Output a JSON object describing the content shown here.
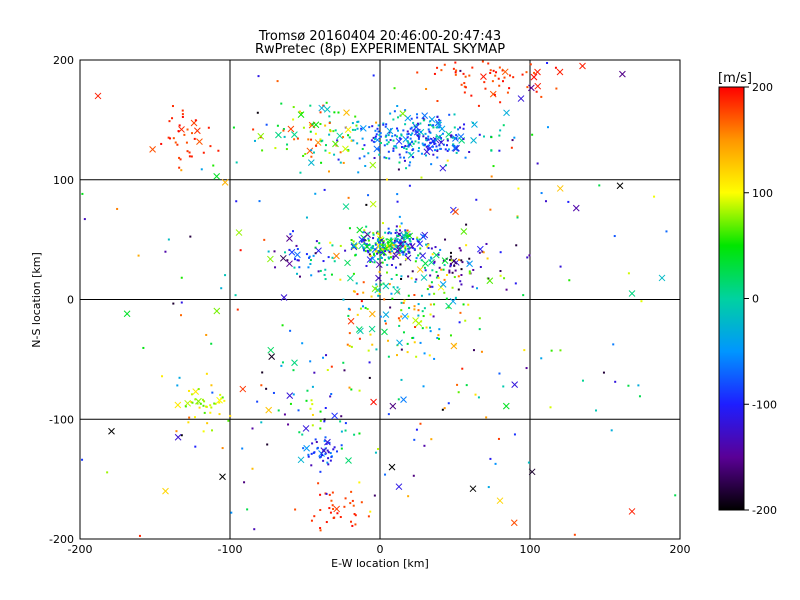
{
  "chart_data": {
    "type": "scatter",
    "title": "Tromsø 20160404 20:46:00-20:47:43",
    "subtitle": "RwPretec (8p) EXPERIMENTAL SKYMAP",
    "xlabel": "E-W location [km]",
    "ylabel": "N-S location [km]",
    "xlim": [
      -200,
      200
    ],
    "ylim": [
      -200,
      200
    ],
    "xticks": [
      "-200",
      "-100",
      "0",
      "100",
      "200"
    ],
    "yticks": [
      "-200",
      "-100",
      "0",
      "100",
      "200"
    ],
    "grid": true,
    "markers": {
      "dot": "small point",
      "cross": "x"
    },
    "colorbar": {
      "label": "[m/s]",
      "range": [
        -200,
        200
      ],
      "ticks": [
        "200",
        "100",
        "0",
        "-100",
        "-200"
      ],
      "colormap": "black-purple-blue-cyan-green-yellow-orange-red"
    },
    "clusters": [
      {
        "center": [
          25,
          135
        ],
        "spread": [
          22,
          10
        ],
        "count": 260,
        "velocity_range": [
          -130,
          20
        ]
      },
      {
        "center": [
          -40,
          135
        ],
        "spread": [
          18,
          12
        ],
        "count": 80,
        "velocity_range": [
          -50,
          190
        ]
      },
      {
        "center": [
          -130,
          135
        ],
        "spread": [
          10,
          12
        ],
        "count": 35,
        "velocity_range": [
          170,
          200
        ]
      },
      {
        "center": [
          75,
          185
        ],
        "spread": [
          20,
          10
        ],
        "count": 60,
        "velocity_range": [
          170,
          200
        ]
      },
      {
        "center": [
          8,
          45
        ],
        "spread": [
          14,
          8
        ],
        "count": 260,
        "velocity_range": [
          -150,
          120
        ]
      },
      {
        "center": [
          45,
          30
        ],
        "spread": [
          20,
          12
        ],
        "count": 60,
        "velocity_range": [
          -200,
          -100
        ]
      },
      {
        "center": [
          -50,
          35
        ],
        "spread": [
          12,
          10
        ],
        "count": 40,
        "velocity_range": [
          -180,
          40
        ]
      },
      {
        "center": [
          20,
          0
        ],
        "spread": [
          28,
          25
        ],
        "count": 170,
        "velocity_range": [
          -60,
          190
        ]
      },
      {
        "center": [
          -115,
          -90
        ],
        "spread": [
          10,
          10
        ],
        "count": 40,
        "velocity_range": [
          60,
          130
        ]
      },
      {
        "center": [
          -38,
          -128
        ],
        "spread": [
          6,
          6
        ],
        "count": 40,
        "velocity_range": [
          -140,
          -40
        ]
      },
      {
        "center": [
          -30,
          -175
        ],
        "spread": [
          12,
          10
        ],
        "count": 35,
        "velocity_range": [
          170,
          200
        ]
      },
      {
        "center": [
          -40,
          -85
        ],
        "spread": [
          20,
          22
        ],
        "count": 45,
        "velocity_range": [
          -200,
          100
        ]
      },
      {
        "center": [
          0,
          -100
        ],
        "spread": [
          90,
          60
        ],
        "count": 120,
        "velocity_range": [
          -200,
          200
        ]
      },
      {
        "center": [
          0,
          80
        ],
        "spread": [
          110,
          70
        ],
        "count": 160,
        "velocity_range": [
          -200,
          200
        ]
      }
    ],
    "annotated_crosses": [
      {
        "x": -188,
        "y": 170,
        "v": 190
      },
      {
        "x": 160,
        "y": 95,
        "v": -200
      },
      {
        "x": 188,
        "y": 18,
        "v": -20
      },
      {
        "x": 168,
        "y": 5,
        "v": 10
      },
      {
        "x": 168,
        "y": -177,
        "v": 190
      },
      {
        "x": -179,
        "y": -110,
        "v": -200
      },
      {
        "x": -143,
        "y": -160,
        "v": 120
      },
      {
        "x": 62,
        "y": -158,
        "v": -200
      },
      {
        "x": 80,
        "y": -168,
        "v": 120
      },
      {
        "x": 105,
        "y": 190,
        "v": 190
      },
      {
        "x": 120,
        "y": 190,
        "v": 190
      },
      {
        "x": 135,
        "y": 195,
        "v": 190
      },
      {
        "x": -105,
        "y": -148,
        "v": -200
      },
      {
        "x": 8,
        "y": -140,
        "v": -200
      }
    ]
  }
}
